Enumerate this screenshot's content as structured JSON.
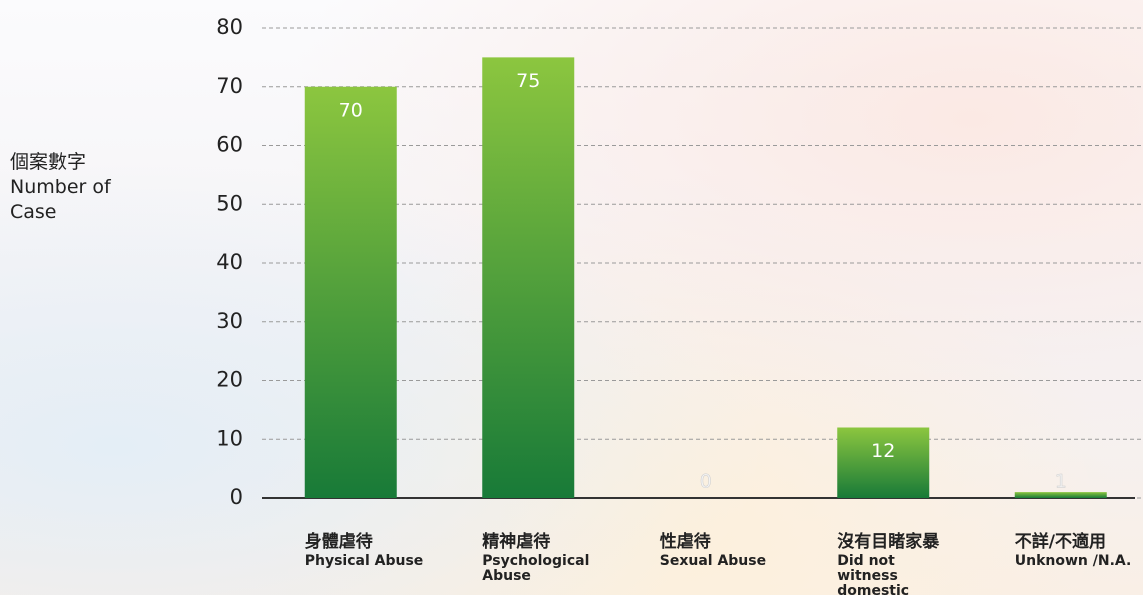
{
  "chart_data": {
    "type": "bar",
    "y_axis_label_zh": "個案數字",
    "y_axis_label": "Number of Case",
    "categories": [
      "身體虐待",
      "精神虐待",
      "性虐待",
      "沒有目睹家暴",
      "不詳/不適用"
    ],
    "categories_en": [
      "Physical Abuse",
      "Psychological Abuse",
      "Sexual Abuse",
      "Did not witness domestic violence",
      "Unknown /N.A."
    ],
    "values": [
      70,
      75,
      0,
      12,
      1
    ],
    "color": "#2e9a45",
    "ylim": [
      0,
      80
    ],
    "yticks": [
      0,
      10,
      20,
      30,
      40,
      50,
      60,
      70,
      80
    ],
    "grid": true
  }
}
